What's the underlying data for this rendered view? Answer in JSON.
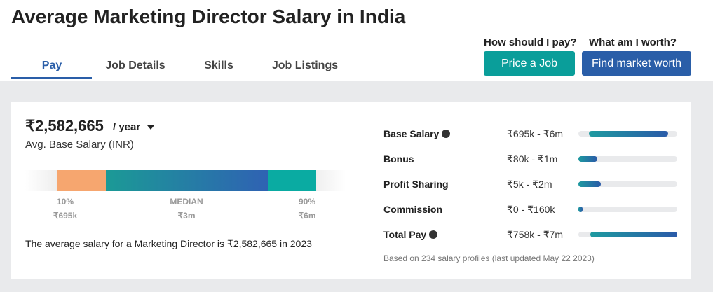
{
  "header": {
    "title": "Average Marketing Director Salary in India"
  },
  "tabs": [
    "Pay",
    "Job Details",
    "Skills",
    "Job Listings"
  ],
  "actions": [
    {
      "question": "How should I pay?",
      "button": "Price a Job"
    },
    {
      "question": "What am I worth?",
      "button": "Find market worth"
    }
  ],
  "summary": {
    "amount": "₹2,582,665",
    "period": "/ year",
    "label": "Avg. Base Salary (INR)"
  },
  "distribution": [
    {
      "label": "10%",
      "value": "₹695k"
    },
    {
      "label": "MEDIAN",
      "value": "₹3m"
    },
    {
      "label": "90%",
      "value": "₹6m"
    }
  ],
  "description": "The average salary for a Marketing Director is ₹2,582,665 in 2023",
  "pay_breakdown": {
    "rows": [
      {
        "name": "Base Salary",
        "range": "₹695k - ₹6m"
      },
      {
        "name": "Bonus",
        "range": "₹80k - ₹1m"
      },
      {
        "name": "Profit Sharing",
        "range": "₹5k - ₹2m"
      },
      {
        "name": "Commission",
        "range": "₹0 - ₹160k"
      },
      {
        "name": "Total Pay",
        "range": "₹758k - ₹7m"
      }
    ],
    "note": "Based on 234 salary profiles (last updated May 22 2023)"
  }
}
